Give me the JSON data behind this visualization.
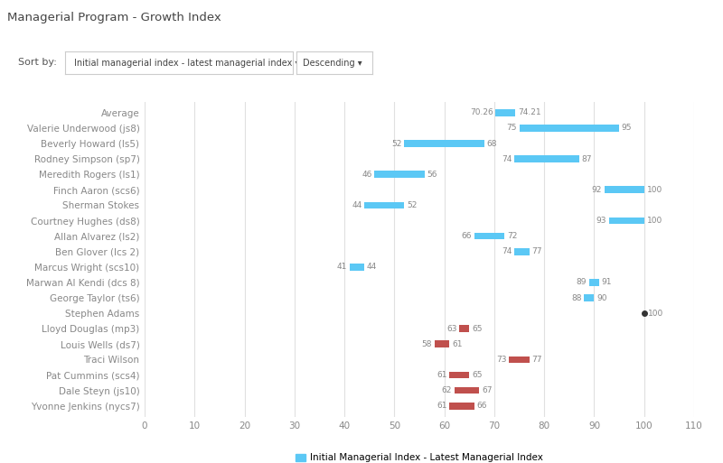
{
  "title": "Managerial Program - Growth Index",
  "sort_label": "Sort by:",
  "sort_option": "Initial managerial index - latest managerial index ▾",
  "sort_order": "Descending ▾",
  "categories": [
    "Average",
    "Valerie Underwood (js8)",
    "Beverly Howard (ls5)",
    "Rodney Simpson (sp7)",
    "Meredith Rogers (ls1)",
    "Finch Aaron (scs6)",
    "Sherman Stokes",
    "Courtney Hughes (ds8)",
    "Allan Alvarez (ls2)",
    "Ben Glover (lcs 2)",
    "Marcus Wright (scs10)",
    "Marwan Al Kendi (dcs 8)",
    "George Taylor (ts6)",
    "Stephen Adams",
    "Lloyd Douglas (mp3)",
    "Louis Wells (ds7)",
    "Traci Wilson",
    "Pat Cummins (scs4)",
    "Dale Steyn (js10)",
    "Yvonne Jenkins (nycs7)"
  ],
  "initial": [
    70.26,
    75,
    52,
    74,
    46,
    92,
    44,
    93,
    66,
    74,
    41,
    89,
    88,
    100,
    63,
    58,
    73,
    61,
    62,
    61
  ],
  "latest": [
    74.21,
    95,
    68,
    87,
    56,
    100,
    52,
    100,
    72,
    77,
    44,
    91,
    90,
    100,
    65,
    61,
    77,
    65,
    67,
    66
  ],
  "bar_colors": [
    "blue",
    "blue",
    "blue",
    "blue",
    "blue",
    "blue",
    "blue",
    "blue",
    "blue",
    "blue",
    "blue",
    "blue",
    "blue",
    "dot",
    "red",
    "red",
    "red",
    "red",
    "red",
    "red"
  ],
  "blue_color": "#5BC8F5",
  "red_color": "#C0504D",
  "background_color": "#FFFFFF",
  "grid_color": "#E0E0E0",
  "label_color": "#888888",
  "title_color": "#555555",
  "annot_color": "#888888",
  "xlabel": "Initial Managerial Index - Latest Managerial Index",
  "xlim": [
    0,
    110
  ],
  "xticks": [
    0,
    10,
    20,
    30,
    40,
    50,
    60,
    70,
    80,
    90,
    100,
    110
  ],
  "bar_height": 0.45,
  "figwidth": 8.0,
  "figheight": 5.13,
  "dpi": 100
}
